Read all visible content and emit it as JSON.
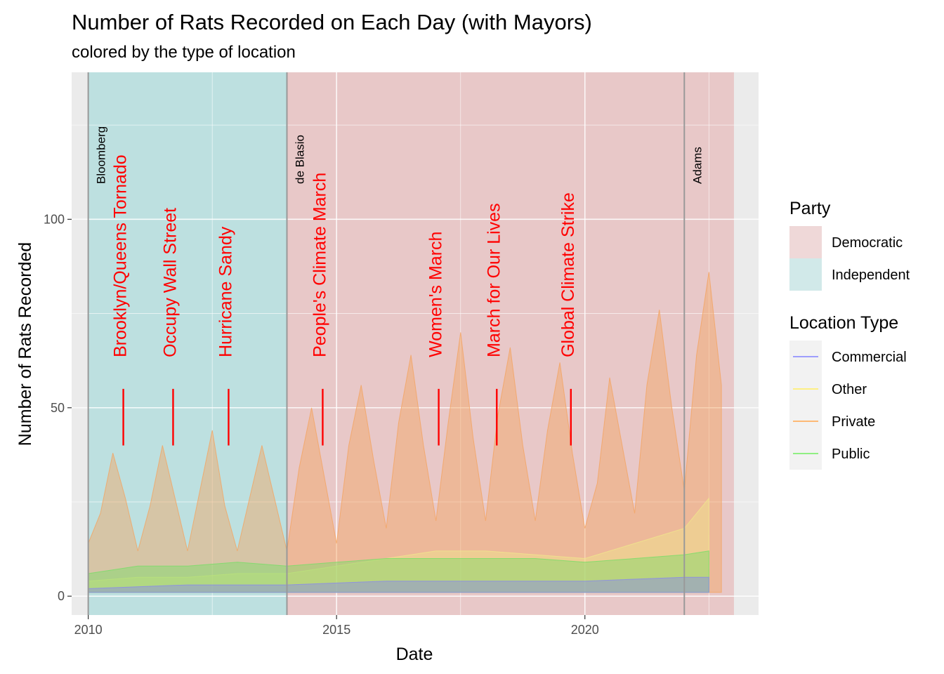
{
  "chart_data": {
    "type": "area",
    "title": "Number of Rats Recorded on Each Day (with Mayors)",
    "subtitle": "colored by the type of location",
    "xlabel": "Date",
    "ylabel": "Number of Rats Recorded",
    "xlim": [
      "2009-09-01",
      "2023-07-01"
    ],
    "ylim": [
      -5,
      139
    ],
    "x_ticks": [
      {
        "date": "2010-01-01",
        "label": "2010"
      },
      {
        "date": "2015-01-01",
        "label": "2015"
      },
      {
        "date": "2020-01-01",
        "label": "2020"
      }
    ],
    "y_ticks": [
      0,
      50,
      100
    ],
    "grid": true,
    "panel_background": "#ebebeb",
    "party_bands": [
      {
        "party": "Independent",
        "start": "2010-01-01",
        "end": "2014-01-01",
        "color": "#bde0e0"
      },
      {
        "party": "Democratic",
        "start": "2014-01-01",
        "end": "2023-01-01",
        "color": "#e8c8c8"
      }
    ],
    "mayors": [
      {
        "name": "Bloomberg",
        "date": "2010-01-01"
      },
      {
        "name": "de Blasio",
        "date": "2014-01-01"
      },
      {
        "name": "Adams",
        "date": "2022-01-01"
      }
    ],
    "events": [
      {
        "name": "Brooklyn/Queens Tornado",
        "date": "2010-09-16"
      },
      {
        "name": "Occupy Wall Street",
        "date": "2011-09-17"
      },
      {
        "name": "Hurricane Sandy",
        "date": "2012-10-29"
      },
      {
        "name": "People's Climate March",
        "date": "2014-09-21"
      },
      {
        "name": "Women's March",
        "date": "2017-01-21"
      },
      {
        "name": "March for Our Lives",
        "date": "2018-03-24"
      },
      {
        "name": "Global Climate Strike",
        "date": "2019-09-20"
      }
    ],
    "event_marker_range": [
      40,
      55
    ],
    "legends": [
      {
        "title": "Party",
        "entries": [
          {
            "name": "Democratic",
            "color": "#e8c8c8"
          },
          {
            "name": "Independent",
            "color": "#bde0e0"
          }
        ]
      },
      {
        "title": "Location Type",
        "entries": [
          {
            "name": "Commercial",
            "color": "#8888ff"
          },
          {
            "name": "Other",
            "color": "#ffee66"
          },
          {
            "name": "Private",
            "color": "#ffaa55"
          },
          {
            "name": "Public",
            "color": "#77ee66"
          }
        ]
      }
    ],
    "legend_position": "right",
    "series": [
      {
        "name": "Private",
        "color": "#f4a460",
        "x": [
          "2010-01",
          "2010-04",
          "2010-07",
          "2010-10",
          "2011-01",
          "2011-04",
          "2011-07",
          "2011-10",
          "2012-01",
          "2012-04",
          "2012-07",
          "2012-10",
          "2013-01",
          "2013-04",
          "2013-07",
          "2013-10",
          "2014-01",
          "2014-04",
          "2014-07",
          "2014-10",
          "2015-01",
          "2015-04",
          "2015-07",
          "2015-10",
          "2016-01",
          "2016-04",
          "2016-07",
          "2016-10",
          "2017-01",
          "2017-04",
          "2017-07",
          "2017-10",
          "2018-01",
          "2018-04",
          "2018-07",
          "2018-10",
          "2019-01",
          "2019-04",
          "2019-07",
          "2019-10",
          "2020-01",
          "2020-04",
          "2020-07",
          "2020-10",
          "2021-01",
          "2021-04",
          "2021-07",
          "2021-10",
          "2022-01",
          "2022-04",
          "2022-07",
          "2022-10"
        ],
        "values": [
          14,
          22,
          38,
          26,
          12,
          24,
          40,
          26,
          12,
          28,
          44,
          24,
          12,
          26,
          40,
          26,
          12,
          34,
          50,
          32,
          14,
          40,
          56,
          36,
          18,
          46,
          64,
          40,
          20,
          46,
          70,
          42,
          20,
          48,
          66,
          40,
          20,
          44,
          62,
          38,
          18,
          30,
          58,
          40,
          22,
          56,
          76,
          50,
          28,
          64,
          86,
          56
        ]
      },
      {
        "name": "Other",
        "color": "#f0e68c",
        "x": [
          "2010-01",
          "2011-01",
          "2012-01",
          "2013-01",
          "2014-01",
          "2015-01",
          "2016-01",
          "2017-01",
          "2018-01",
          "2019-01",
          "2020-01",
          "2021-01",
          "2022-01",
          "2022-07"
        ],
        "values": [
          4,
          5,
          5,
          6,
          6,
          8,
          10,
          12,
          12,
          11,
          10,
          14,
          18,
          26
        ]
      },
      {
        "name": "Public",
        "color": "#77dd66",
        "x": [
          "2010-01",
          "2011-01",
          "2012-01",
          "2013-01",
          "2014-01",
          "2015-01",
          "2016-01",
          "2017-01",
          "2018-01",
          "2019-01",
          "2020-01",
          "2021-01",
          "2022-01",
          "2022-07"
        ],
        "values": [
          6,
          8,
          8,
          9,
          8,
          9,
          10,
          10,
          10,
          10,
          9,
          10,
          11,
          12
        ]
      },
      {
        "name": "Commercial",
        "color": "#8888ee",
        "x": [
          "2010-01",
          "2012-01",
          "2014-01",
          "2016-01",
          "2018-01",
          "2020-01",
          "2022-01",
          "2022-07"
        ],
        "values": [
          2,
          3,
          3,
          4,
          4,
          4,
          5,
          5
        ]
      }
    ]
  }
}
